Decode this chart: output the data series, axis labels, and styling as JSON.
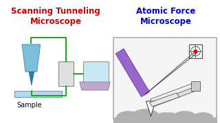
{
  "bg_color": "#ffffff",
  "left_title": "Scanning Tunneling\nMicroscope",
  "right_title": "Atomic Force\nMicroscope",
  "left_title_color": "#cc0000",
  "right_title_color": "#0000cc",
  "sample_label": "Sample",
  "title_fontsize": 8.5,
  "label_fontsize": 7.0
}
